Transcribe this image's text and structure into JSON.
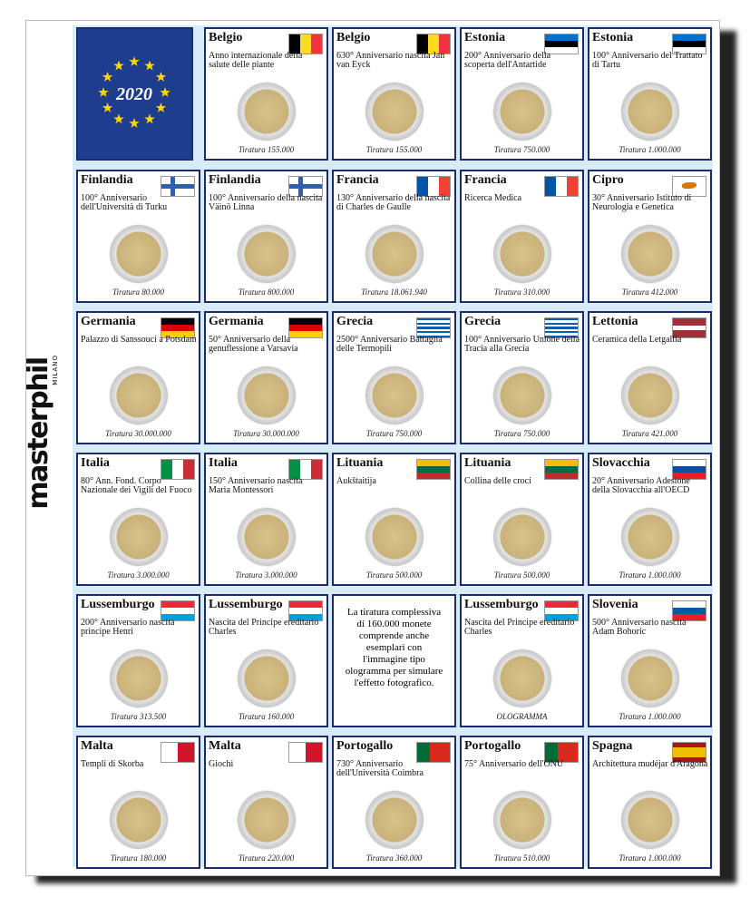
{
  "brand": {
    "name": "masterphil",
    "city": "MILANO"
  },
  "year": "2020",
  "cells": [
    {
      "country": "Belgio",
      "text": "Anno internazionale della salute delle piante",
      "mintage": "Tiratura 155.000"
    },
    {
      "country": "Belgio",
      "text": "630° Anniversario nascita Jan van Eyck",
      "mintage": "Tiratura 155.000"
    },
    {
      "country": "Estonia",
      "text": "200° Anniversario della scoperta dell'Antartide",
      "mintage": "Tiratura 750.000"
    },
    {
      "country": "Estonia",
      "text": "100° Anniversario del Trattato di Tartu",
      "mintage": "Tiratura 1.000.000"
    },
    {
      "country": "Finlandia",
      "text": "100° Anniversario dell'Università di Turku",
      "mintage": "Tiratura 80.000"
    },
    {
      "country": "Finlandia",
      "text": "100° Anniversario della nascita Väinö Linna",
      "mintage": "Tiratura 800.000"
    },
    {
      "country": "Francia",
      "text": "130° Anniversario della nascita di Charles de Gaulle",
      "mintage": "Tiratura 18.061.940"
    },
    {
      "country": "Francia",
      "text": "Ricerca Medica",
      "mintage": "Tiratura 310.000"
    },
    {
      "country": "Cipro",
      "text": "30° Anniversario Istituto di Neurologia e Genetica",
      "mintage": "Tiratura 412.000"
    },
    {
      "country": "Germania",
      "text": "Palazzo di Sanssouci a Potsdam",
      "mintage": "Tiratura 30.000.000"
    },
    {
      "country": "Germania",
      "text": "50° Anniversario della genuflessione a Varsavia",
      "mintage": "Tiratura 30.000.000"
    },
    {
      "country": "Grecia",
      "text": "2500° Anniversario Battaglia delle Termopili",
      "mintage": "Tiratura 750.000"
    },
    {
      "country": "Grecia",
      "text": "100° Anniversario Unione della Tracia alla Grecia",
      "mintage": "Tiratura 750.000"
    },
    {
      "country": "Lettonia",
      "text": "Ceramica della Letgallia",
      "mintage": "Tiratura 421.000"
    },
    {
      "country": "Italia",
      "text": "80° Ann. Fond. Corpo Nazionale dei Vigili del Fuoco",
      "mintage": "Tiratura 3.000.000"
    },
    {
      "country": "Italia",
      "text": "150° Anniversario nascita Maria Montessori",
      "mintage": "Tiratura 3.000.000"
    },
    {
      "country": "Lituania",
      "text": "Aukštaitija",
      "mintage": "Tiratura 500.000"
    },
    {
      "country": "Lituania",
      "text": "Collina delle croci",
      "mintage": "Tiratura 500.000"
    },
    {
      "country": "Slovacchia",
      "text": "20° Anniversario Adesione della Slovacchia all'OECD",
      "mintage": "Tiratura 1.000.000"
    },
    {
      "country": "Lussemburgo",
      "text": "200° Anniversario nascita principe Henri",
      "mintage": "Tiratura 313.500"
    },
    {
      "country": "Lussemburgo",
      "text": "Nascita del Principe ereditario Charles",
      "mintage": "Tiratura 160.000"
    },
    {
      "note": "La tiratura complessiva di 160.000 monete comprende anche esemplari con l'immagine tipo ologramma per simulare l'effetto fotografico."
    },
    {
      "country": "Lussemburgo",
      "text": "Nascita del Principe ereditario Charles",
      "mintage": "OLOGRAMMA"
    },
    {
      "country": "Slovenia",
      "text": "500° Anniversario nascita Adam Bohoric",
      "mintage": "Tiratura 1.000.000"
    },
    {
      "country": "Malta",
      "text": "Templi di Skorba",
      "mintage": "Tiratura 180.000"
    },
    {
      "country": "Malta",
      "text": "Giochi",
      "mintage": "Tiratura 220.000"
    },
    {
      "country": "Portogallo",
      "text": "730° Anniversario dell'Università Coimbra",
      "mintage": "Tiratura 360.000"
    },
    {
      "country": "Portogallo",
      "text": "75° Anniversario dell'ONU",
      "mintage": "Tiratura 510.000"
    },
    {
      "country": "Spagna",
      "text": "Architettura mudéjar d'Aragona",
      "mintage": "Tiratura 1.000.000"
    }
  ]
}
